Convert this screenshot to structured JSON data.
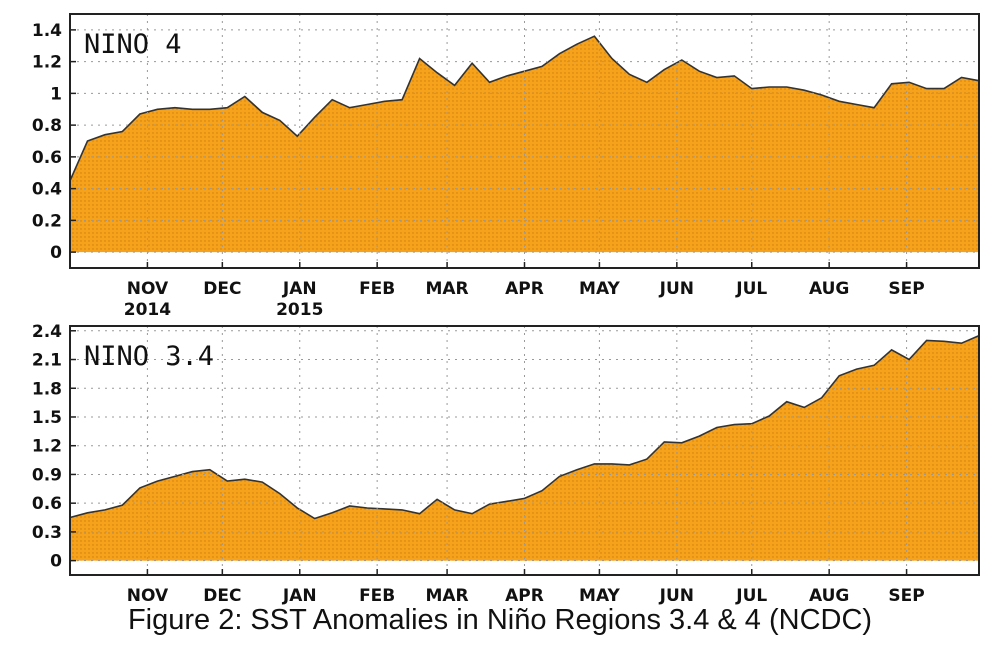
{
  "caption": "Figure 2: SST Anomalies in Niño Regions 3.4 & 4 (NCDC)",
  "colors": {
    "fill": "#F7A21B",
    "line": "#333333",
    "grid": "#9a9a9a",
    "frame": "#222222"
  },
  "chart_data": [
    {
      "type": "area",
      "title": "NINO 4",
      "xlabel": "",
      "ylabel": "",
      "x_range": [
        "2014-10-01",
        "2015-09-30"
      ],
      "ylim": [
        -0.1,
        1.5
      ],
      "yticks": [
        0,
        0.2,
        0.4,
        0.6,
        0.8,
        1,
        1.2,
        1.4
      ],
      "ytick_labels": [
        "0",
        "0.2",
        "0.4",
        "0.6",
        "0.8",
        "1",
        "1.2",
        "1.4"
      ],
      "month_ticks": [
        {
          "date": "2014-11-01",
          "label": "NOV",
          "sub": "2014"
        },
        {
          "date": "2014-12-01",
          "label": "DEC",
          "sub": ""
        },
        {
          "date": "2015-01-01",
          "label": "JAN",
          "sub": "2015"
        },
        {
          "date": "2015-02-01",
          "label": "FEB",
          "sub": ""
        },
        {
          "date": "2015-03-01",
          "label": "MAR",
          "sub": ""
        },
        {
          "date": "2015-04-01",
          "label": "APR",
          "sub": ""
        },
        {
          "date": "2015-05-01",
          "label": "MAY",
          "sub": ""
        },
        {
          "date": "2015-06-01",
          "label": "JUN",
          "sub": ""
        },
        {
          "date": "2015-07-01",
          "label": "JUL",
          "sub": ""
        },
        {
          "date": "2015-08-01",
          "label": "AUG",
          "sub": ""
        },
        {
          "date": "2015-09-01",
          "label": "SEP",
          "sub": ""
        }
      ],
      "grid": true,
      "series": [
        {
          "x": [
            "2014-10-01",
            "2014-10-08",
            "2014-10-15",
            "2014-10-22",
            "2014-10-29",
            "2014-11-05",
            "2014-11-12",
            "2014-11-19",
            "2014-11-26",
            "2014-12-03",
            "2014-12-10",
            "2014-12-17",
            "2014-12-24",
            "2014-12-31",
            "2015-01-07",
            "2015-01-14",
            "2015-01-21",
            "2015-01-28",
            "2015-02-04",
            "2015-02-11",
            "2015-02-18",
            "2015-02-25",
            "2015-03-04",
            "2015-03-11",
            "2015-03-18",
            "2015-03-25",
            "2015-04-01",
            "2015-04-08",
            "2015-04-15",
            "2015-04-22",
            "2015-04-29",
            "2015-05-06",
            "2015-05-13",
            "2015-05-20",
            "2015-05-27",
            "2015-06-03",
            "2015-06-10",
            "2015-06-17",
            "2015-06-24",
            "2015-07-01",
            "2015-07-08",
            "2015-07-15",
            "2015-07-22",
            "2015-07-29",
            "2015-08-05",
            "2015-08-12",
            "2015-08-19",
            "2015-08-26",
            "2015-09-02",
            "2015-09-09",
            "2015-09-16",
            "2015-09-23",
            "2015-09-30"
          ],
          "values": [
            0.45,
            0.7,
            0.74,
            0.76,
            0.87,
            0.9,
            0.91,
            0.9,
            0.9,
            0.91,
            0.98,
            0.88,
            0.83,
            0.73,
            0.85,
            0.96,
            0.91,
            0.93,
            0.95,
            0.96,
            1.22,
            1.13,
            1.05,
            1.19,
            1.07,
            1.11,
            1.14,
            1.17,
            1.25,
            1.31,
            1.36,
            1.22,
            1.12,
            1.07,
            1.15,
            1.21,
            1.14,
            1.1,
            1.11,
            1.03,
            1.04,
            1.04,
            1.02,
            0.99,
            0.95,
            0.93,
            0.91,
            1.06,
            1.07,
            1.03,
            1.03,
            1.1,
            1.08
          ]
        }
      ]
    },
    {
      "type": "area",
      "title": "NINO 3.4",
      "xlabel": "",
      "ylabel": "",
      "x_range": [
        "2014-10-01",
        "2015-09-30"
      ],
      "ylim": [
        -0.15,
        2.45
      ],
      "yticks": [
        0,
        0.3,
        0.6,
        0.9,
        1.2,
        1.5,
        1.8,
        2.1,
        2.4
      ],
      "ytick_labels": [
        "0",
        "0.3",
        "0.6",
        "0.9",
        "1.2",
        "1.5",
        "1.8",
        "2.1",
        "2.4"
      ],
      "month_ticks": [
        {
          "date": "2014-11-01",
          "label": "NOV",
          "sub": ""
        },
        {
          "date": "2014-12-01",
          "label": "DEC",
          "sub": ""
        },
        {
          "date": "2015-01-01",
          "label": "JAN",
          "sub": ""
        },
        {
          "date": "2015-02-01",
          "label": "FEB",
          "sub": ""
        },
        {
          "date": "2015-03-01",
          "label": "MAR",
          "sub": ""
        },
        {
          "date": "2015-04-01",
          "label": "APR",
          "sub": ""
        },
        {
          "date": "2015-05-01",
          "label": "MAY",
          "sub": ""
        },
        {
          "date": "2015-06-01",
          "label": "JUN",
          "sub": ""
        },
        {
          "date": "2015-07-01",
          "label": "JUL",
          "sub": ""
        },
        {
          "date": "2015-08-01",
          "label": "AUG",
          "sub": ""
        },
        {
          "date": "2015-09-01",
          "label": "SEP",
          "sub": ""
        }
      ],
      "grid": true,
      "series": [
        {
          "x": [
            "2014-10-01",
            "2014-10-08",
            "2014-10-15",
            "2014-10-22",
            "2014-10-29",
            "2014-11-05",
            "2014-11-12",
            "2014-11-19",
            "2014-11-26",
            "2014-12-03",
            "2014-12-10",
            "2014-12-17",
            "2014-12-24",
            "2014-12-31",
            "2015-01-07",
            "2015-01-14",
            "2015-01-21",
            "2015-01-28",
            "2015-02-04",
            "2015-02-11",
            "2015-02-18",
            "2015-02-25",
            "2015-03-04",
            "2015-03-11",
            "2015-03-18",
            "2015-03-25",
            "2015-04-01",
            "2015-04-08",
            "2015-04-15",
            "2015-04-22",
            "2015-04-29",
            "2015-05-06",
            "2015-05-13",
            "2015-05-20",
            "2015-05-27",
            "2015-06-03",
            "2015-06-10",
            "2015-06-17",
            "2015-06-24",
            "2015-07-01",
            "2015-07-08",
            "2015-07-15",
            "2015-07-22",
            "2015-07-29",
            "2015-08-05",
            "2015-08-12",
            "2015-08-19",
            "2015-08-26",
            "2015-09-02",
            "2015-09-09",
            "2015-09-16",
            "2015-09-23",
            "2015-09-30"
          ],
          "values": [
            0.45,
            0.5,
            0.53,
            0.58,
            0.76,
            0.83,
            0.88,
            0.93,
            0.95,
            0.83,
            0.85,
            0.82,
            0.7,
            0.55,
            0.44,
            0.5,
            0.57,
            0.55,
            0.54,
            0.53,
            0.49,
            0.64,
            0.53,
            0.49,
            0.59,
            0.62,
            0.65,
            0.73,
            0.88,
            0.95,
            1.01,
            1.01,
            1.0,
            1.06,
            1.24,
            1.23,
            1.3,
            1.39,
            1.42,
            1.43,
            1.51,
            1.66,
            1.6,
            1.7,
            1.93,
            2.0,
            2.04,
            2.2,
            2.1,
            2.3,
            2.29,
            2.27,
            2.35
          ]
        }
      ]
    }
  ]
}
